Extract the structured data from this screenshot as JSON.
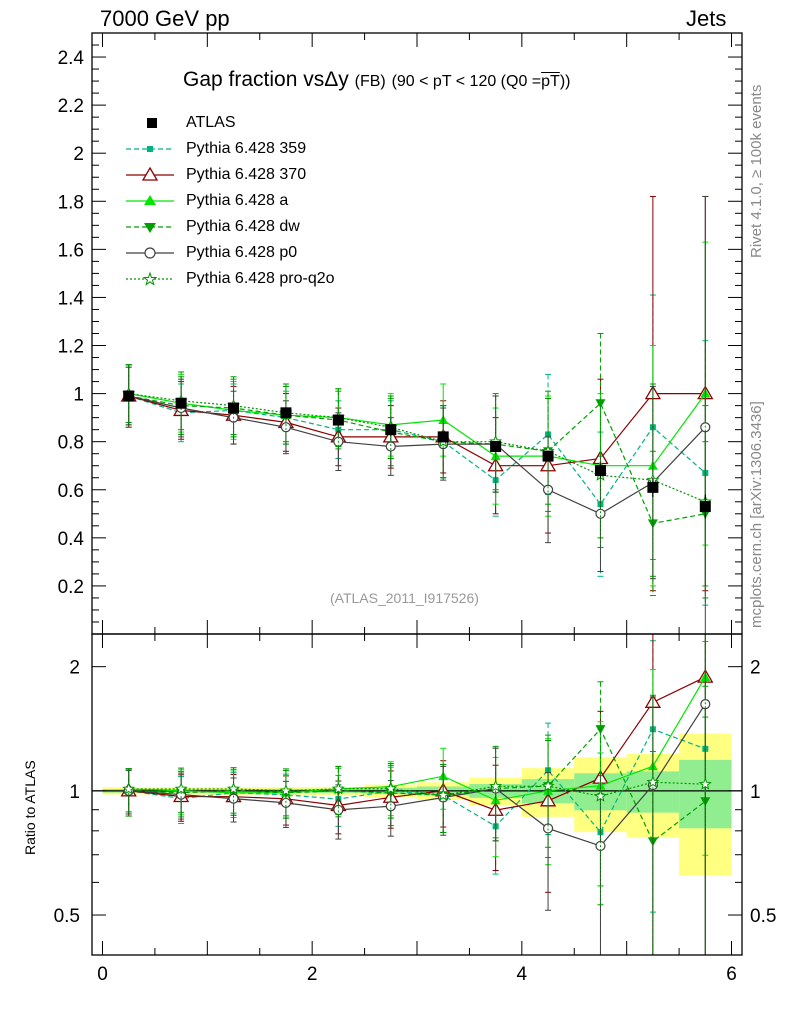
{
  "header": {
    "left": "7000 GeV pp",
    "right": "Jets"
  },
  "side_labels": {
    "rivet": "Rivet 4.1.0, ≥ 100k events",
    "mcplots": "mcplots.cern.ch [arXiv:1306.3436]"
  },
  "plot_title": {
    "main": "Gap fraction vsΔy",
    "fb": "(FB)",
    "range": "(90 < pT < 120 (Q0 =",
    "pt": "pT",
    "close": "))"
  },
  "analysis_tag": "(ATLAS_2011_I917526)",
  "ratio_ylabel": "Ratio to ATLAS",
  "chart_data": {
    "type": "line",
    "x": [
      0.25,
      0.75,
      1.25,
      1.75,
      2.25,
      2.75,
      3.25,
      3.75,
      4.25,
      4.75,
      5.25,
      5.75
    ],
    "xlim": [
      -0.1,
      6.1
    ],
    "main_ylim": [
      0,
      2.5
    ],
    "ratio_ylim": [
      0.4,
      2.4
    ],
    "x_ticks": [
      "0",
      "2",
      "4",
      "6"
    ],
    "main_y_ticks": [
      "0.2",
      "0.4",
      "0.6",
      "0.8",
      "1",
      "1.2",
      "1.4",
      "1.6",
      "1.8",
      "2",
      "2.2",
      "2.4"
    ],
    "ratio_y_ticks": [
      "0.5",
      "1",
      "2"
    ],
    "data": {
      "name": "ATLAS",
      "values": [
        0.99,
        0.96,
        0.94,
        0.92,
        0.89,
        0.85,
        0.82,
        0.78,
        0.74,
        0.68,
        0.61,
        0.53
      ],
      "errors": [
        0.01,
        0.01,
        0.01,
        0.01,
        0.01,
        0.01,
        0.02,
        0.02,
        0.02,
        0.03,
        0.04,
        0.05
      ],
      "band_errors": [
        0.01,
        0.01,
        0.01,
        0.01,
        0.01,
        0.015,
        0.02,
        0.03,
        0.05,
        0.07,
        0.07,
        0.1
      ]
    },
    "series": [
      {
        "name": "Pythia 6.428 359",
        "color": "#00b482",
        "dash": "5,3",
        "marker": "square-small",
        "values": [
          0.99,
          0.92,
          0.93,
          0.9,
          0.85,
          0.85,
          0.8,
          0.64,
          0.83,
          0.54,
          0.86,
          0.67
        ],
        "errors": [
          0.12,
          0.12,
          0.11,
          0.11,
          0.12,
          0.12,
          0.15,
          0.15,
          0.25,
          0.3,
          0.55,
          0.55
        ]
      },
      {
        "name": "Pythia 6.428 370",
        "color": "#8b0000",
        "dash": "",
        "marker": "triangle-open",
        "values": [
          0.99,
          0.93,
          0.91,
          0.88,
          0.82,
          0.82,
          0.82,
          0.7,
          0.7,
          0.73,
          1.0,
          1.0
        ],
        "errors": [
          0.13,
          0.12,
          0.12,
          0.12,
          0.12,
          0.13,
          0.15,
          0.2,
          0.28,
          0.33,
          0.82,
          0.82
        ]
      },
      {
        "name": "Pythia 6.428 a",
        "color": "#00e600",
        "dash": "",
        "marker": "triangle-filled",
        "values": [
          1.0,
          0.96,
          0.93,
          0.91,
          0.9,
          0.87,
          0.89,
          0.74,
          0.74,
          0.7,
          0.7,
          1.0
        ],
        "errors": [
          0.12,
          0.12,
          0.12,
          0.12,
          0.12,
          0.13,
          0.15,
          0.2,
          0.25,
          0.3,
          0.5,
          0.63
        ]
      },
      {
        "name": "Pythia 6.428 dw",
        "color": "#00a000",
        "dash": "5,3",
        "marker": "triangle-down",
        "values": [
          0.99,
          0.95,
          0.94,
          0.91,
          0.89,
          0.84,
          0.8,
          0.79,
          0.76,
          0.96,
          0.46,
          0.5
        ],
        "errors": [
          0.13,
          0.12,
          0.12,
          0.12,
          0.12,
          0.14,
          0.15,
          0.2,
          0.25,
          0.29,
          0.3,
          0.3
        ]
      },
      {
        "name": "Pythia 6.428 p0",
        "color": "#404040",
        "dash": "",
        "marker": "circle-open",
        "values": [
          0.99,
          0.94,
          0.9,
          0.86,
          0.8,
          0.78,
          0.79,
          0.79,
          0.6,
          0.5,
          0.63,
          0.86
        ],
        "errors": [
          0.12,
          0.12,
          0.11,
          0.11,
          0.12,
          0.12,
          0.15,
          0.2,
          0.22,
          0.24,
          0.4,
          0.96
        ]
      },
      {
        "name": "Pythia 6.428 pro-q2o",
        "color": "#009600",
        "dash": "2,2",
        "marker": "star-open",
        "values": [
          1.0,
          0.97,
          0.95,
          0.92,
          0.9,
          0.86,
          0.8,
          0.8,
          0.76,
          0.66,
          0.64,
          0.55
        ],
        "errors": [
          0.12,
          0.12,
          0.12,
          0.12,
          0.12,
          0.13,
          0.15,
          0.2,
          0.22,
          0.3,
          0.4,
          0.4
        ]
      }
    ]
  }
}
